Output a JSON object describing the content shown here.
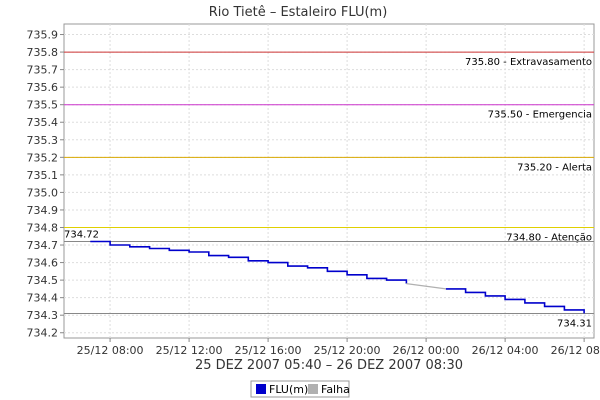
{
  "chart_data": {
    "type": "line",
    "title": "Rio Tietê – Estaleiro FLU(m)",
    "xlabel": "25 DEZ 2007 05:40 – 26 DEZ 2007 08:30",
    "ylabel": "",
    "x_tick_labels": [
      "25/12 08:00",
      "25/12 12:00",
      "25/12 16:00",
      "25/12 20:00",
      "26/12 00:00",
      "26/12 04:00",
      "26/12 08:00"
    ],
    "x_ticks_hours": [
      8,
      12,
      16,
      20,
      24,
      28,
      32
    ],
    "xlim_hours": [
      5.667,
      32.5
    ],
    "ylim": [
      734.17,
      735.96
    ],
    "y_ticks": [
      734.2,
      734.3,
      734.4,
      734.5,
      734.6,
      734.7,
      734.8,
      734.9,
      735.0,
      735.1,
      735.2,
      735.3,
      735.4,
      735.5,
      735.6,
      735.7,
      735.8,
      735.9
    ],
    "grid": true,
    "reference_lines": [
      {
        "value": 735.8,
        "label": "735.80 - Extravasamento",
        "color": "#cc3333"
      },
      {
        "value": 735.5,
        "label": "735.50 - Emergencia",
        "color": "#cc33cc"
      },
      {
        "value": 735.2,
        "label": "735.20 - Alerta",
        "color": "#d9a800"
      },
      {
        "value": 734.8,
        "label": "734.80 - Atenção",
        "color": "#e0d000"
      }
    ],
    "min_max_lines": [
      {
        "value": 734.72,
        "label": "734.72"
      },
      {
        "value": 734.31,
        "label": "734.31"
      }
    ],
    "series": [
      {
        "name": "FLU(m)",
        "color": "#0000cc",
        "x_hours": [
          7.0,
          8.0,
          9.0,
          10.0,
          11.0,
          12.0,
          13.0,
          14.0,
          15.0,
          16.0,
          17.0,
          18.0,
          19.0,
          20.0,
          21.0,
          22.0,
          23.0
        ],
        "values": [
          734.72,
          734.7,
          734.69,
          734.68,
          734.67,
          734.66,
          734.64,
          734.63,
          734.61,
          734.6,
          734.58,
          734.57,
          734.55,
          734.53,
          734.51,
          734.5,
          734.48
        ]
      },
      {
        "name": "Falha",
        "color": "#b0b0b0",
        "x_hours": [
          23.0,
          25.0
        ],
        "values": [
          734.48,
          734.45
        ]
      },
      {
        "name": "FLU(m)",
        "color": "#0000cc",
        "x_hours": [
          25.0,
          26.0,
          27.0,
          28.0,
          29.0,
          30.0,
          31.0,
          32.0
        ],
        "values": [
          734.45,
          734.43,
          734.41,
          734.39,
          734.37,
          734.35,
          734.33,
          734.31
        ]
      }
    ],
    "legend": {
      "placement": "bottom-center",
      "entries": [
        {
          "label": "FLU(m)",
          "color": "#0000cc"
        },
        {
          "label": "Falha",
          "color": "#b0b0b0"
        }
      ]
    }
  }
}
